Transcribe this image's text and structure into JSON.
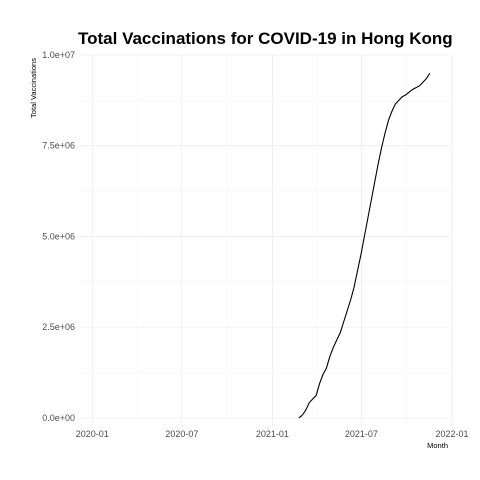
{
  "chart_data": {
    "type": "line",
    "title": "Total Vaccinations for COVID-19 in Hong Kong",
    "xlabel": "Month",
    "ylabel": "Total Vaccinations",
    "xlim": [
      "2019-12-05",
      "2021-12-28"
    ],
    "ylim": [
      -250000,
      10000000
    ],
    "x_ticks": [
      "2020-01",
      "2020-07",
      "2021-01",
      "2021-07",
      "2022-01"
    ],
    "x_tick_dates": [
      "2020-01-01",
      "2020-07-01",
      "2021-01-01",
      "2021-07-01",
      "2022-01-01"
    ],
    "y_ticks": [
      "0.0e+00",
      "2.5e+06",
      "5.0e+06",
      "7.5e+06",
      "1.0e+07"
    ],
    "y_tick_values": [
      0,
      2500000,
      5000000,
      7500000,
      10000000
    ],
    "grid": true,
    "series": [
      {
        "x": [
          "2021-02-24",
          "2021-03-03",
          "2021-03-10",
          "2021-03-17",
          "2021-03-24",
          "2021-03-31",
          "2021-04-07",
          "2021-04-14",
          "2021-04-21",
          "2021-04-28",
          "2021-05-05",
          "2021-05-12",
          "2021-05-19",
          "2021-05-26",
          "2021-06-02",
          "2021-06-09",
          "2021-06-16",
          "2021-06-23",
          "2021-06-30",
          "2021-07-07",
          "2021-07-14",
          "2021-07-21",
          "2021-07-28",
          "2021-08-04",
          "2021-08-11",
          "2021-08-18",
          "2021-08-25",
          "2021-09-01",
          "2021-09-08",
          "2021-09-15",
          "2021-09-22",
          "2021-09-29",
          "2021-10-06",
          "2021-10-13",
          "2021-10-20",
          "2021-10-27",
          "2021-11-03",
          "2021-11-10",
          "2021-11-17"
        ],
        "y": [
          0,
          80000,
          220000,
          420000,
          520000,
          620000,
          950000,
          1200000,
          1380000,
          1700000,
          1950000,
          2150000,
          2350000,
          2650000,
          2950000,
          3250000,
          3600000,
          4050000,
          4500000,
          5000000,
          5500000,
          6000000,
          6500000,
          7000000,
          7450000,
          7850000,
          8200000,
          8450000,
          8650000,
          8750000,
          8850000,
          8900000,
          8980000,
          9050000,
          9100000,
          9150000,
          9250000,
          9350000,
          9500000
        ]
      }
    ]
  }
}
